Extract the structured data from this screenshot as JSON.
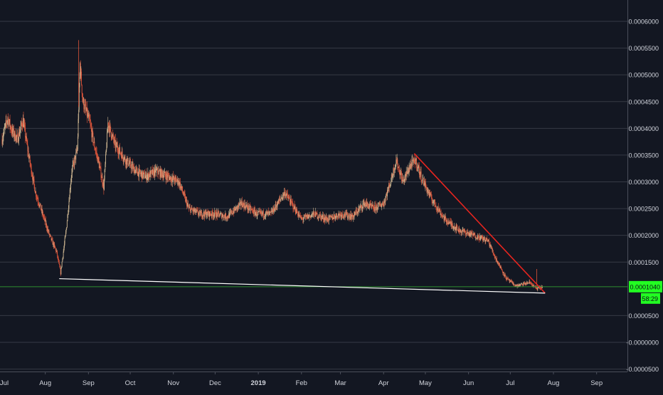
{
  "colors": {
    "background": "#131722",
    "grid": "#363a45",
    "axis_text": "#d1d4dc",
    "up_candle": "#c9b28e",
    "down_candle": "#e0553a",
    "resistance_line": "#e8251f",
    "support_line": "#ffffff",
    "price_line": "#2f8f2f",
    "price_badge": "#22ff22",
    "price_badge_text": "#0b0f16"
  },
  "price_axis": {
    "labels": [
      "0.0006000",
      "0.0005500",
      "0.0005000",
      "0.0004500",
      "0.0004000",
      "0.0003500",
      "0.0003000",
      "0.0002500",
      "0.0002000",
      "0.0001500",
      "0.0000500",
      "-0.0000000",
      "-0.0000500"
    ]
  },
  "time_axis": {
    "labels": [
      "Jul",
      "Aug",
      "Sep",
      "Oct",
      "Nov",
      "Dec",
      "2019",
      "Feb",
      "Mar",
      "Apr",
      "May",
      "Jun",
      "Jul",
      "Aug",
      "Sep"
    ]
  },
  "current_price": {
    "value": "0.0001040",
    "countdown": "58:29"
  },
  "chart_data": {
    "type": "candlestick",
    "title": "",
    "xlabel": "",
    "ylabel": "",
    "ylim": [
      -5e-05,
      0.0006
    ],
    "x_range": [
      "2018-07-01",
      "2019-09-20"
    ],
    "grid": true,
    "legend": "none",
    "last_price": 0.000104,
    "price_path": [
      [
        "2018-07-01",
        0.00038
      ],
      [
        "2018-07-05",
        0.00042
      ],
      [
        "2018-07-08",
        0.000395
      ],
      [
        "2018-07-12",
        0.00038
      ],
      [
        "2018-07-16",
        0.000415
      ],
      [
        "2018-07-20",
        0.00035
      ],
      [
        "2018-07-25",
        0.00028
      ],
      [
        "2018-07-30",
        0.00024
      ],
      [
        "2018-08-04",
        0.0002
      ],
      [
        "2018-08-09",
        0.00017
      ],
      [
        "2018-08-12",
        0.00013
      ],
      [
        "2018-08-16",
        0.00021
      ],
      [
        "2018-08-20",
        0.00032
      ],
      [
        "2018-08-24",
        0.00036
      ],
      [
        "2018-08-26",
        0.00052
      ],
      [
        "2018-08-28",
        0.00045
      ],
      [
        "2018-09-02",
        0.00041
      ],
      [
        "2018-09-05",
        0.00037
      ],
      [
        "2018-09-08",
        0.00034
      ],
      [
        "2018-09-12",
        0.00029
      ],
      [
        "2018-09-15",
        0.00041
      ],
      [
        "2018-09-20",
        0.00037
      ],
      [
        "2018-09-28",
        0.00034
      ],
      [
        "2018-10-05",
        0.00032
      ],
      [
        "2018-10-12",
        0.00031
      ],
      [
        "2018-10-20",
        0.00032
      ],
      [
        "2018-10-28",
        0.00031
      ],
      [
        "2018-11-05",
        0.0003
      ],
      [
        "2018-11-12",
        0.00025
      ],
      [
        "2018-11-20",
        0.00024
      ],
      [
        "2018-12-01",
        0.00024
      ],
      [
        "2018-12-10",
        0.000235
      ],
      [
        "2018-12-20",
        0.00026
      ],
      [
        "2018-12-31",
        0.00024
      ],
      [
        "2019-01-10",
        0.00024
      ],
      [
        "2019-01-20",
        0.00028
      ],
      [
        "2019-02-01",
        0.00023
      ],
      [
        "2019-02-10",
        0.00024
      ],
      [
        "2019-02-20",
        0.00023
      ],
      [
        "2019-03-01",
        0.00024
      ],
      [
        "2019-03-10",
        0.000235
      ],
      [
        "2019-03-18",
        0.00026
      ],
      [
        "2019-03-25",
        0.00025
      ],
      [
        "2019-04-01",
        0.00026
      ],
      [
        "2019-04-06",
        0.0003
      ],
      [
        "2019-04-10",
        0.00034
      ],
      [
        "2019-04-15",
        0.0003
      ],
      [
        "2019-04-20",
        0.00033
      ],
      [
        "2019-04-24",
        0.00034
      ],
      [
        "2019-04-28",
        0.00031
      ],
      [
        "2019-05-05",
        0.00027
      ],
      [
        "2019-05-15",
        0.00023
      ],
      [
        "2019-05-25",
        0.00021
      ],
      [
        "2019-06-05",
        0.0002
      ],
      [
        "2019-06-15",
        0.00019
      ],
      [
        "2019-06-20",
        0.00016
      ],
      [
        "2019-06-28",
        0.00012
      ],
      [
        "2019-07-05",
        0.000105
      ],
      [
        "2019-07-15",
        0.000112
      ],
      [
        "2019-07-20",
        0.0001
      ],
      [
        "2019-07-24",
        0.000104
      ]
    ],
    "trendlines": [
      {
        "name": "resistance",
        "from": [
          "2019-04-23",
          0.000353
        ],
        "to": [
          "2019-07-26",
          9.2e-05
        ]
      },
      {
        "name": "support",
        "from": [
          "2018-08-11",
          0.000119
        ],
        "to": [
          "2019-07-26",
          9.2e-05
        ]
      }
    ]
  }
}
